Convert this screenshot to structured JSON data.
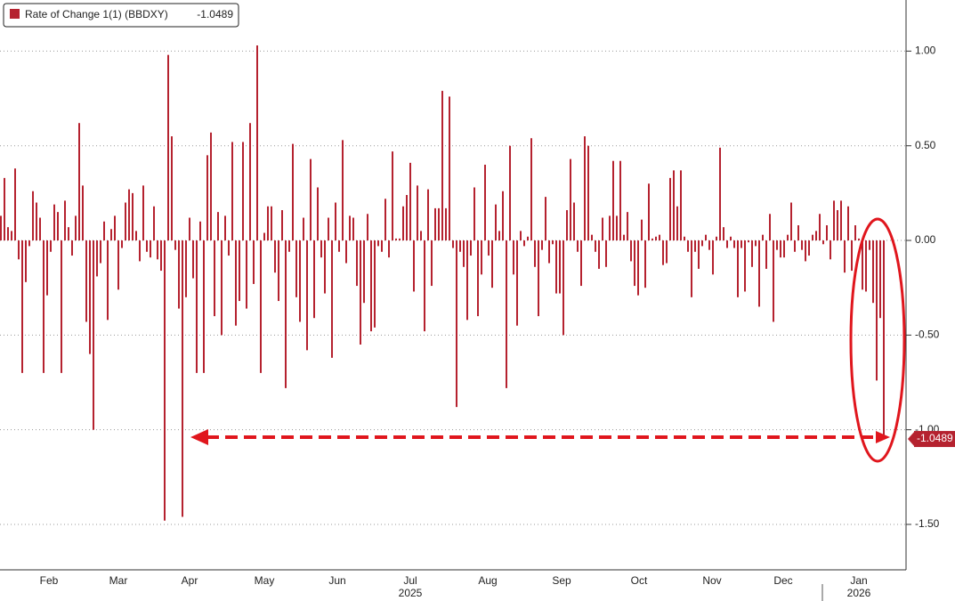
{
  "chart_data": {
    "type": "bar",
    "series": [
      {
        "name": "Rate of Change 1(1) (BBDXY)",
        "color": "#b5222f",
        "values": [
          0.13,
          0.33,
          0.07,
          0.05,
          0.38,
          -0.1,
          -0.7,
          -0.22,
          -0.03,
          0.26,
          0.2,
          0.12,
          -0.7,
          -0.29,
          -0.06,
          0.19,
          0.15,
          -0.7,
          0.21,
          0.07,
          -0.08,
          0.13,
          0.62,
          0.29,
          -0.43,
          -0.6,
          -1.0,
          -0.19,
          -0.12,
          0.1,
          -0.42,
          0.06,
          0.13,
          -0.26,
          -0.04,
          0.2,
          0.27,
          0.25,
          0.05,
          -0.11,
          0.29,
          -0.06,
          -0.09,
          0.18,
          -0.1,
          -0.16,
          -1.48,
          0.98,
          0.55,
          -0.05,
          -0.36,
          -1.46,
          -0.3,
          0.12,
          -0.2,
          -0.7,
          0.1,
          -0.7,
          0.45,
          0.57,
          -0.4,
          0.15,
          -0.5,
          0.13,
          -0.08,
          0.52,
          -0.45,
          -0.32,
          0.52,
          -0.36,
          0.62,
          -0.23,
          1.03,
          -0.7,
          0.04,
          0.18,
          0.18,
          -0.17,
          -0.32,
          0.16,
          -0.78,
          -0.06,
          0.51,
          -0.3,
          -0.43,
          0.12,
          -0.58,
          0.43,
          -0.41,
          0.28,
          -0.09,
          -0.28,
          0.12,
          -0.62,
          0.2,
          -0.06,
          0.53,
          -0.12,
          0.13,
          0.12,
          -0.24,
          -0.55,
          -0.33,
          0.14,
          -0.48,
          -0.46,
          -0.03,
          -0.06,
          0.22,
          -0.09,
          0.47,
          0.01,
          0.01,
          0.18,
          0.24,
          0.41,
          -0.27,
          0.29,
          0.05,
          -0.48,
          0.27,
          -0.24,
          0.17,
          0.17,
          0.79,
          0.17,
          0.76,
          -0.04,
          -0.88,
          -0.06,
          -0.14,
          -0.42,
          -0.08,
          0.28,
          -0.4,
          -0.18,
          0.4,
          -0.08,
          -0.25,
          0.19,
          0.05,
          0.26,
          -0.78,
          0.5,
          -0.18,
          -0.45,
          0.05,
          -0.03,
          0.02,
          0.54,
          -0.14,
          -0.4,
          -0.05,
          0.23,
          -0.12,
          -0.02,
          -0.28,
          -0.28,
          -0.5,
          0.16,
          0.43,
          0.2,
          -0.06,
          -0.24,
          0.55,
          0.5,
          0.03,
          -0.06,
          -0.15,
          0.12,
          -0.14,
          0.13,
          0.42,
          0.13,
          0.42,
          0.03,
          0.15,
          -0.11,
          -0.24,
          -0.29,
          0.11,
          -0.25,
          0.3,
          0.01,
          0.02,
          0.03,
          -0.13,
          -0.12,
          0.33,
          0.37,
          0.18,
          0.37,
          0.02,
          -0.06,
          -0.3,
          -0.06,
          -0.15,
          -0.03,
          0.03,
          -0.05,
          -0.18,
          0.02,
          0.49,
          0.07,
          -0.04,
          0.02,
          -0.04,
          -0.3,
          -0.04,
          -0.27,
          -0.01,
          -0.14,
          -0.03,
          -0.35,
          0.03,
          -0.15,
          0.14,
          -0.43,
          -0.05,
          -0.09,
          -0.09,
          0.03,
          0.2,
          -0.06,
          0.08,
          -0.05,
          -0.11,
          -0.08,
          0.03,
          0.05,
          0.14,
          -0.02,
          0.08,
          -0.1,
          0.21,
          0.16,
          0.21,
          -0.17,
          0.18,
          -0.16,
          0.08,
          0.01,
          -0.26,
          -0.27,
          -0.05,
          -0.33,
          -0.74,
          -0.41,
          -1.0489
        ]
      }
    ],
    "xlim": [
      -0.25,
      254.25
    ],
    "xticks": [
      {
        "value": 13.5,
        "label": "Feb"
      },
      {
        "value": 33,
        "label": "Mar"
      },
      {
        "value": 53,
        "label": "Apr"
      },
      {
        "value": 74,
        "label": "May"
      },
      {
        "value": 94.5,
        "label": "Jun"
      },
      {
        "value": 115,
        "label": "Jul"
      },
      {
        "value": 136.75,
        "label": "Aug"
      },
      {
        "value": 157.5,
        "label": "Sep"
      },
      {
        "value": 179.25,
        "label": "Oct"
      },
      {
        "value": 199.75,
        "label": "Nov"
      },
      {
        "value": 219.75,
        "label": "Dec"
      },
      {
        "value": 241,
        "label": "Jan"
      }
    ],
    "year_labels": [
      {
        "value": 115,
        "label": "2025"
      },
      {
        "value": 241,
        "label": "2026"
      }
    ],
    "ylim": [
      -1.74,
      1.27
    ],
    "yticks": [
      {
        "value": 1,
        "label": "1.00"
      },
      {
        "value": 0.5,
        "label": "0.50"
      },
      {
        "value": 0,
        "label": "0.00"
      },
      {
        "value": -0.5,
        "label": "-0.50"
      },
      {
        "value": -1,
        "label": "-1.00"
      },
      {
        "value": -1.5,
        "label": "-1.50"
      }
    ],
    "grid": true
  }
}
